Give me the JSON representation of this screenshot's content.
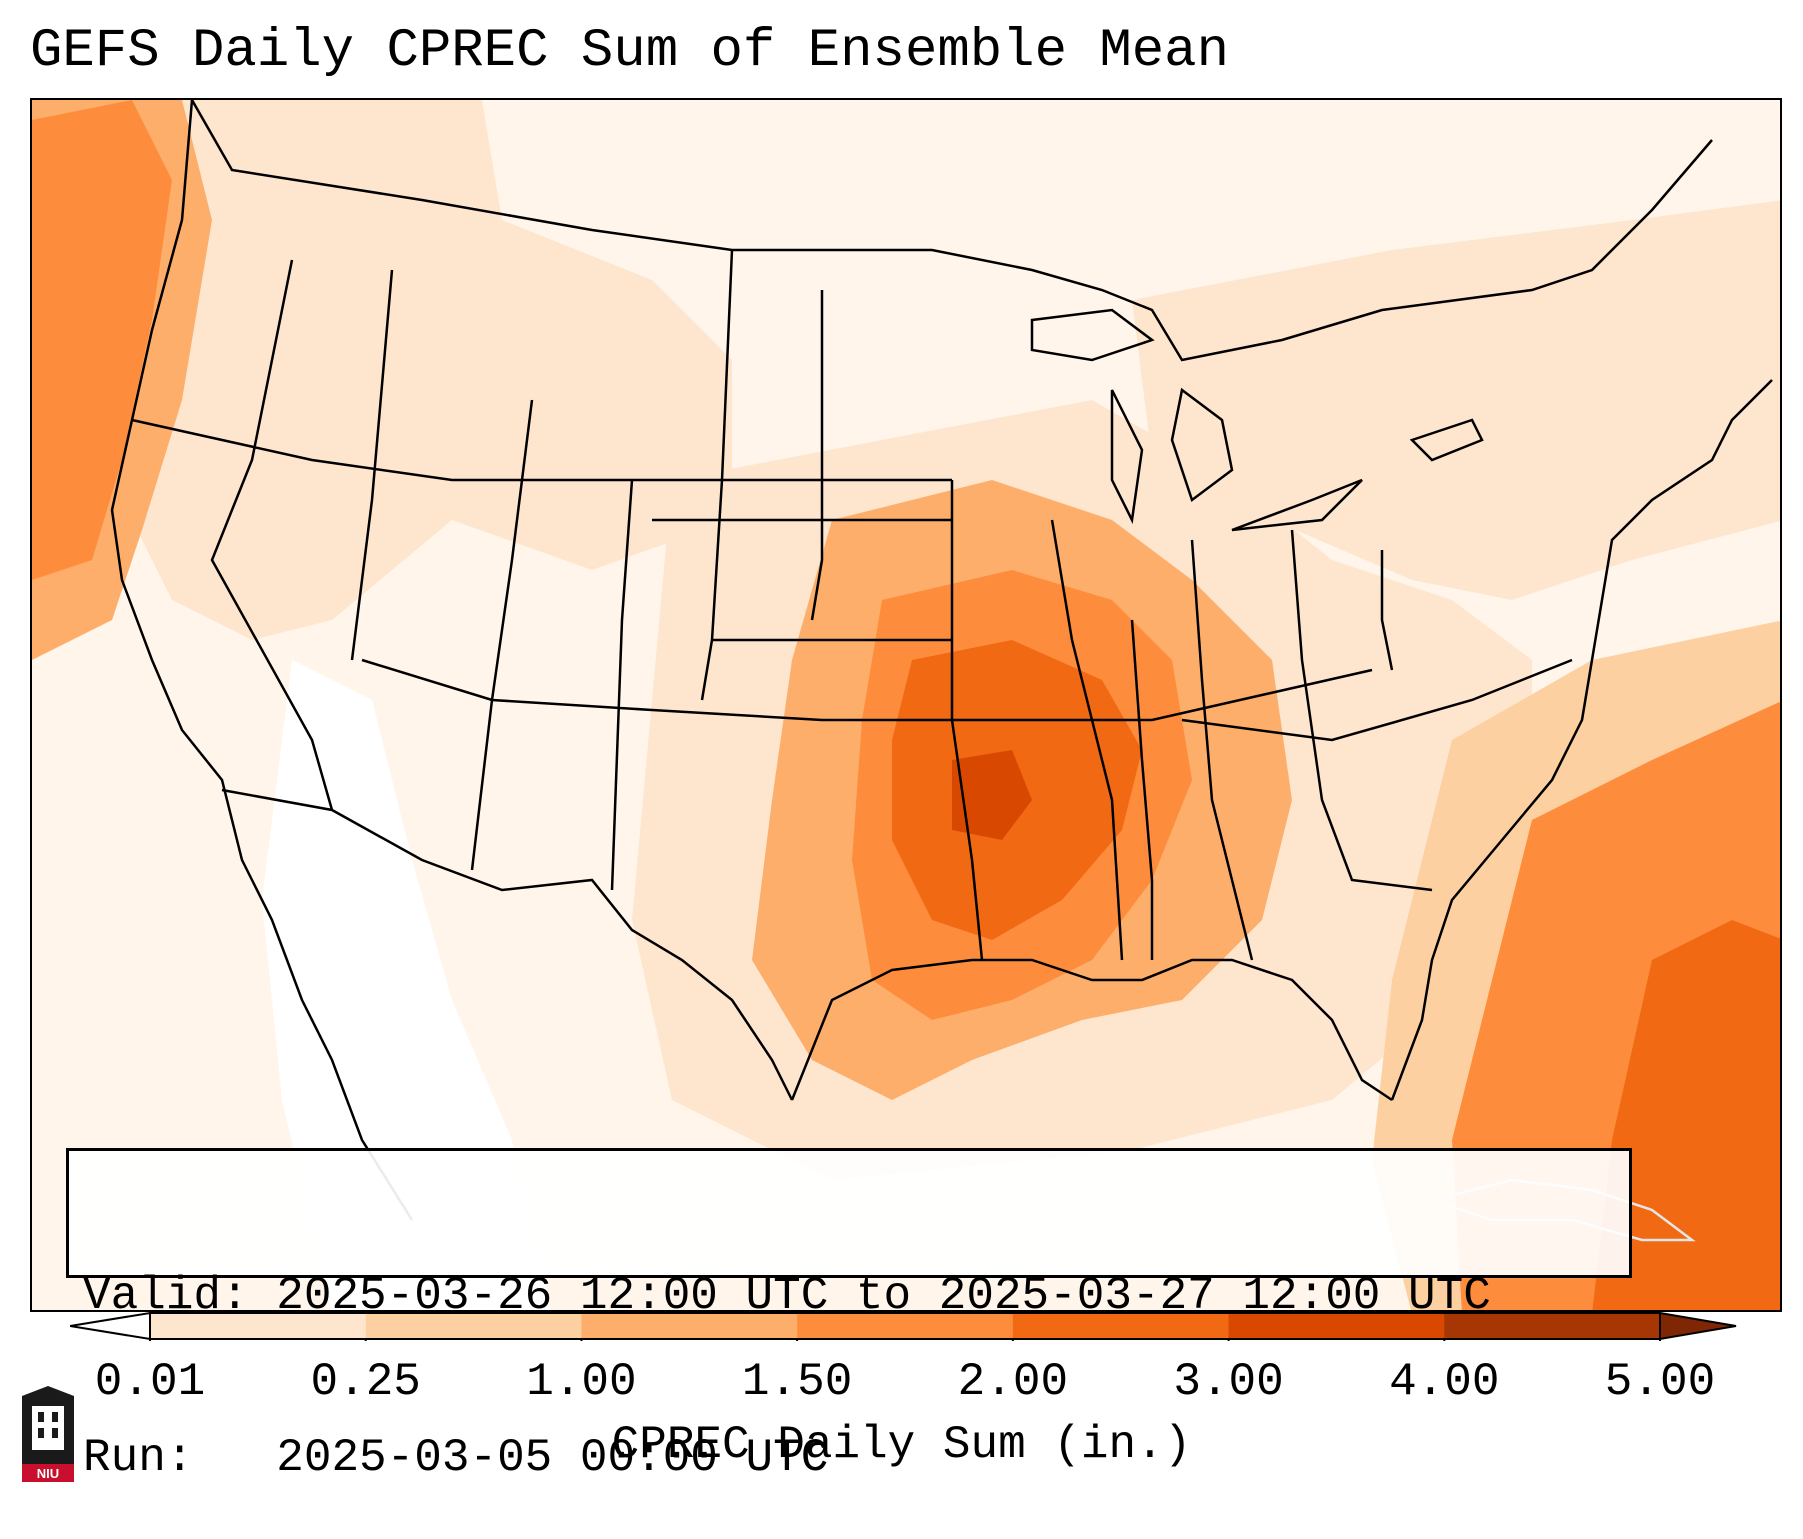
{
  "title": "GEFS Daily CPREC Sum of Ensemble Mean",
  "info": {
    "valid_line": "Valid: 2025-03-26 12:00 UTC to 2025-03-27 12:00 UTC",
    "run_line": "Run:   2025-03-05 00:00 UTC"
  },
  "colorbar": {
    "label": "CPREC Daily Sum (in.)",
    "ticks": [
      "0.01",
      "0.25",
      "1.00",
      "1.50",
      "2.00",
      "3.00",
      "4.00",
      "5.00"
    ],
    "colors": [
      "#fff5eb",
      "#fee6ce",
      "#fdd0a2",
      "#fdae6b",
      "#fd8d3c",
      "#f16913",
      "#d94801",
      "#a63603"
    ],
    "extend": "both"
  },
  "map": {
    "field": "CPREC daily sum",
    "units": "in.",
    "palette": "oranges",
    "highest_values_region": "Oklahoma, Arkansas, Missouri, Tennessee and southern Mississippi Valley",
    "secondary_max_region": "Atlantic east of Florida and the Pacific Northwest coast"
  },
  "logo": {
    "name": "niu-logo",
    "text": "NIU"
  }
}
